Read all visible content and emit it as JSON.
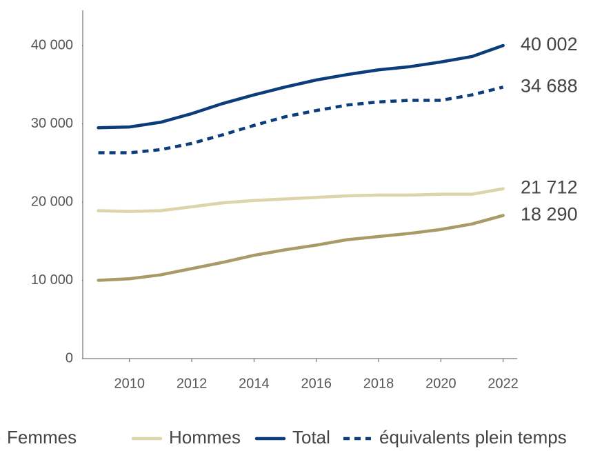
{
  "chart_data": {
    "type": "line",
    "x": [
      2009,
      2010,
      2011,
      2012,
      2013,
      2014,
      2015,
      2016,
      2017,
      2018,
      2019,
      2020,
      2021,
      2022
    ],
    "series": [
      {
        "name": "Femmes",
        "color": "#a99b68",
        "values": [
          10000,
          10200,
          10700,
          11500,
          12300,
          13200,
          13900,
          14500,
          15200,
          15600,
          16000,
          16500,
          17200,
          18290
        ],
        "value_labels": [
          null,
          null,
          null,
          null,
          null,
          null,
          null,
          null,
          null,
          null,
          null,
          null,
          null,
          "18 290"
        ]
      },
      {
        "name": "Hommes",
        "color": "#ddd4ab",
        "values": [
          18900,
          18800,
          18900,
          19400,
          19900,
          20200,
          20400,
          20600,
          20800,
          20900,
          20900,
          21000,
          21000,
          21712
        ],
        "value_labels": [
          null,
          null,
          null,
          null,
          null,
          null,
          null,
          null,
          null,
          null,
          null,
          null,
          null,
          "21 712"
        ]
      },
      {
        "name": "Total",
        "color": "#0b3d7a",
        "values": [
          29500,
          29600,
          30200,
          31300,
          32600,
          33700,
          34700,
          35600,
          36300,
          36900,
          37300,
          37900,
          38600,
          40002
        ],
        "value_labels": [
          null,
          null,
          null,
          null,
          null,
          null,
          null,
          null,
          null,
          null,
          null,
          null,
          null,
          "40 002"
        ]
      },
      {
        "name": "équivalents plein temps",
        "color": "#0b3d7a",
        "dashed": true,
        "values": [
          26300,
          26300,
          26700,
          27500,
          28600,
          29800,
          30900,
          31700,
          32400,
          32800,
          33000,
          33000,
          33700,
          34688
        ],
        "value_labels": [
          null,
          null,
          null,
          null,
          null,
          null,
          null,
          null,
          null,
          null,
          null,
          null,
          null,
          "34 688"
        ]
      }
    ],
    "xlim": [
      2008.5,
      2022.45
    ],
    "xticks": [
      2010,
      2012,
      2014,
      2016,
      2018,
      2020,
      2022
    ],
    "ylim": [
      0,
      44500
    ],
    "yticks": [
      0,
      {
        "value": 10000,
        "label": "10 000"
      },
      {
        "value": 20000,
        "label": "20 000"
      },
      {
        "value": 30000,
        "label": "30 000"
      },
      {
        "value": 40000,
        "label": "40 000"
      }
    ],
    "grid": false,
    "legend": "bottom"
  }
}
